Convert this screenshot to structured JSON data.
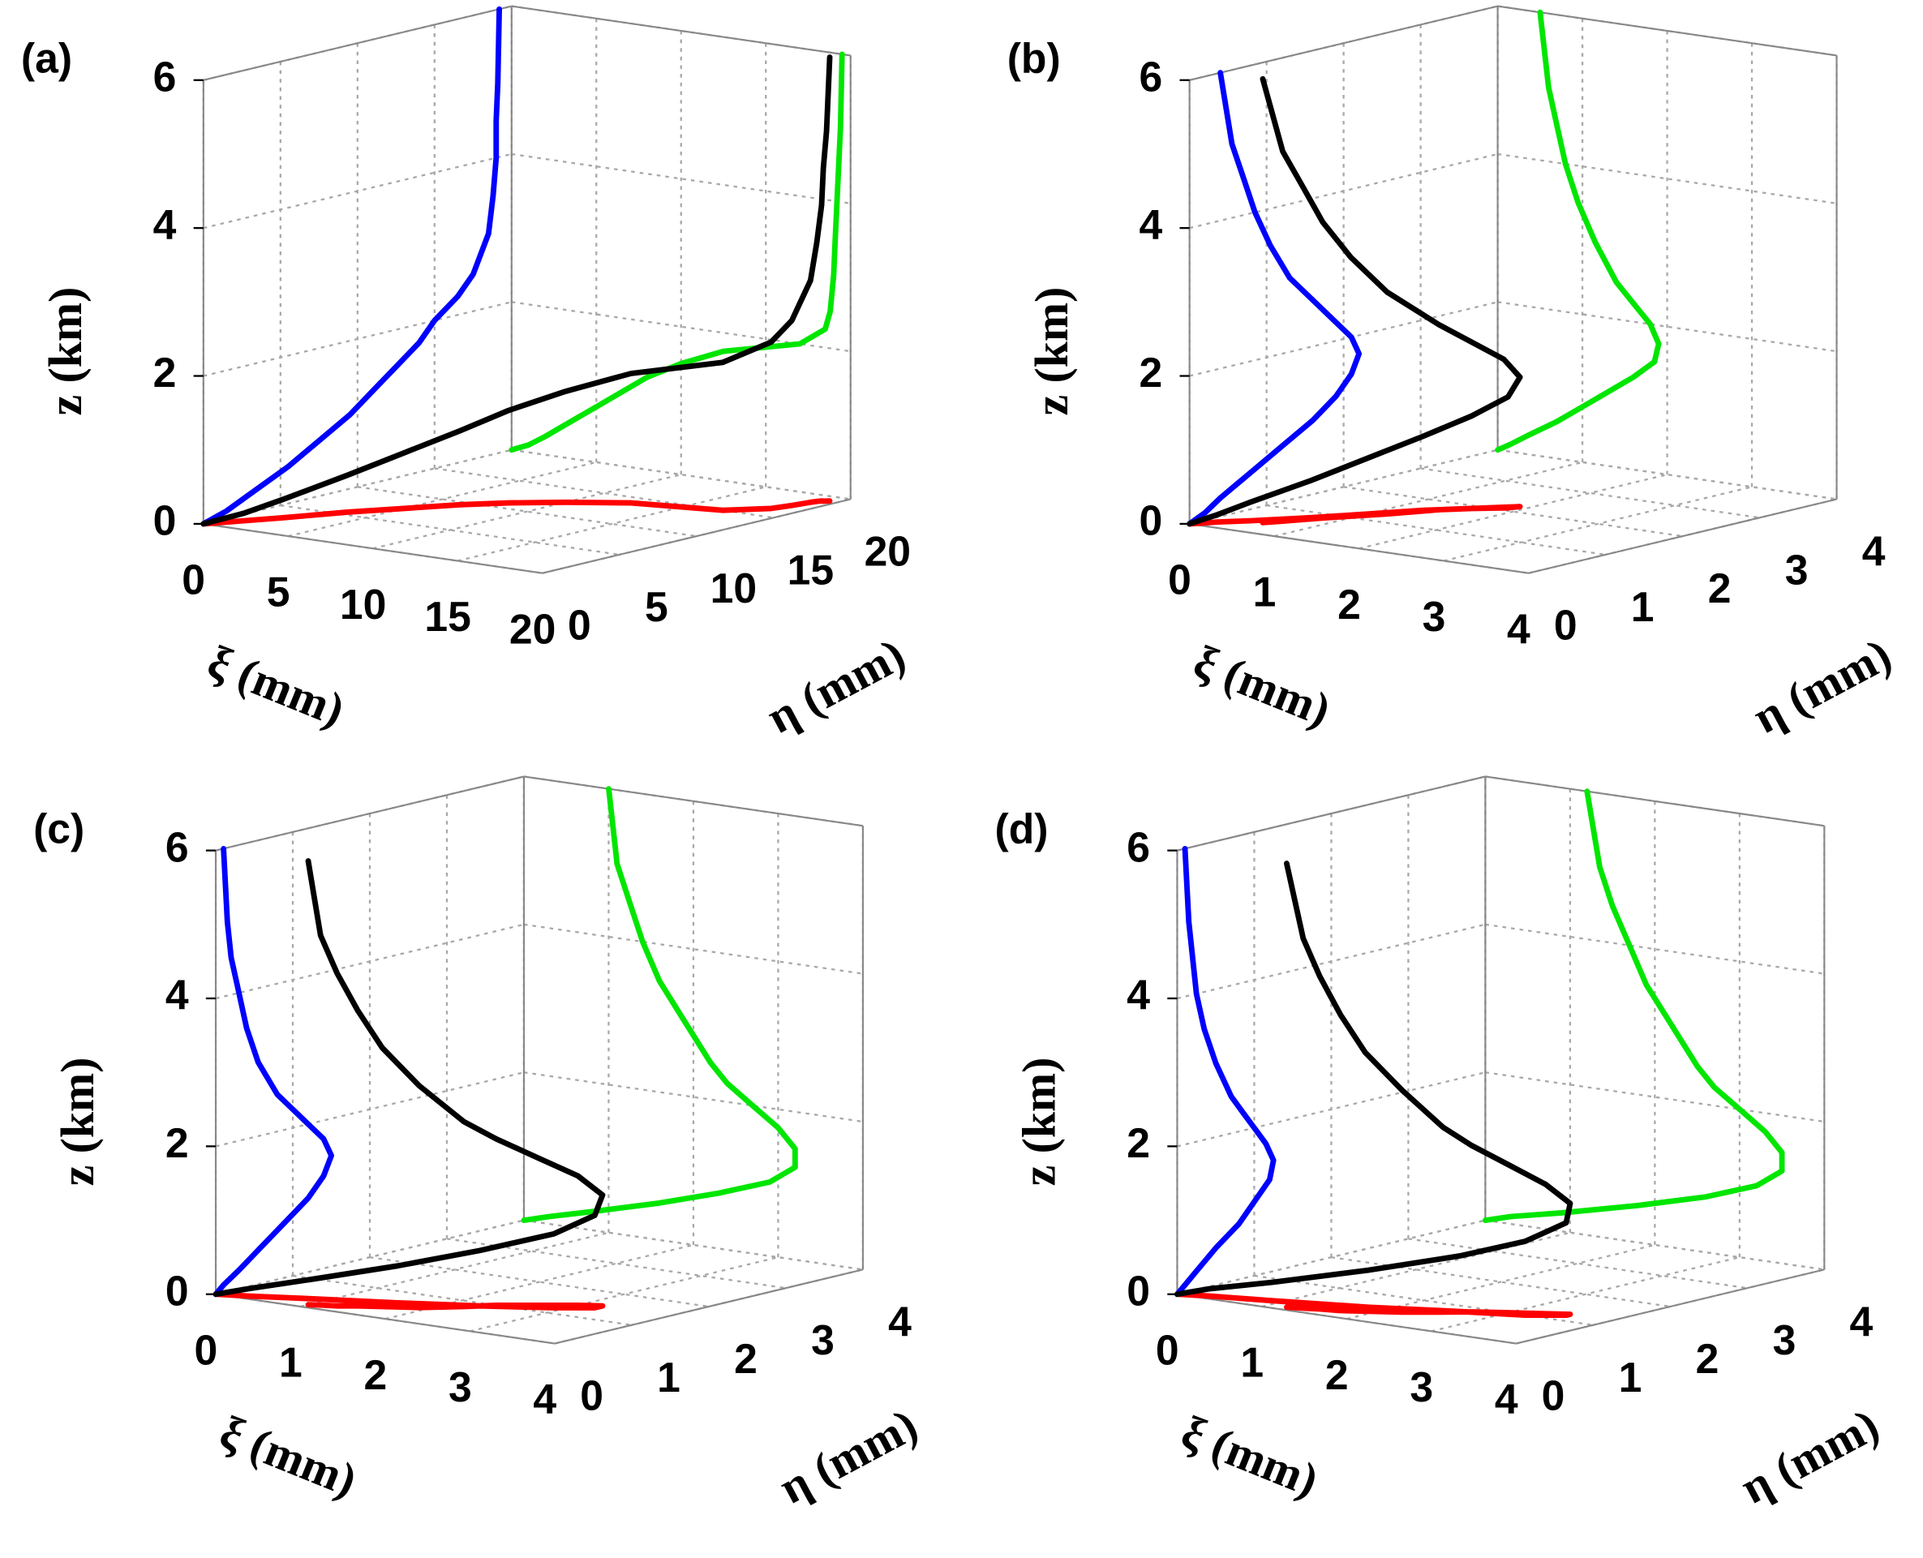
{
  "chart_data": [
    {
      "type": "line3d",
      "panel_label": "(a)",
      "xlabel": "ξ (mm)",
      "ylabel": "η (mm)",
      "zlabel": "z (km)",
      "xlim": [
        0,
        20
      ],
      "xticks": [
        0,
        5,
        10,
        15,
        20
      ],
      "ylim": [
        0,
        20
      ],
      "yticks": [
        0,
        5,
        10,
        15,
        20
      ],
      "zlim": [
        0,
        6
      ],
      "zticks": [
        0,
        2,
        4,
        6
      ],
      "grid": true,
      "color": "#000000",
      "projection_colors": {
        "yz": "#0000ff",
        "xz": "#00e600",
        "xy": "#ff0000"
      },
      "z": [
        0,
        0.1,
        0.25,
        0.5,
        0.75,
        1,
        1.25,
        1.5,
        1.75,
        2,
        2.25,
        2.5,
        3,
        3.5,
        4,
        4.5,
        5,
        6
      ],
      "x": [
        0,
        1,
        2,
        3.5,
        5,
        6.5,
        8,
        10,
        12.5,
        17,
        18.5,
        18.8,
        19,
        19.1,
        19.2,
        19.3,
        19.4,
        19.5
      ],
      "y": [
        0,
        1.5,
        3,
        5.5,
        7.5,
        9.5,
        11,
        12.5,
        14,
        15,
        16.5,
        17.5,
        18.5,
        18.8,
        19,
        19,
        19.1,
        19.2
      ]
    },
    {
      "type": "line3d",
      "panel_label": "(b)",
      "xlabel": "ξ (mm)",
      "ylabel": "η (mm)",
      "zlabel": "z (km)",
      "xlim": [
        0,
        4
      ],
      "xticks": [
        0,
        1,
        2,
        3,
        4
      ],
      "ylim": [
        0,
        4
      ],
      "yticks": [
        0,
        1,
        2,
        3,
        4
      ],
      "zlim": [
        0,
        6
      ],
      "zticks": [
        0,
        2,
        4,
        6
      ],
      "grid": true,
      "color": "#000000",
      "projection_colors": {
        "yz": "#0000ff",
        "xz": "#00e600",
        "xy": "#ff0000"
      },
      "z": [
        0,
        0.1,
        0.25,
        0.5,
        0.75,
        1,
        1.25,
        1.5,
        1.75,
        2,
        2.25,
        2.5,
        3,
        3.5,
        4,
        4.5,
        5,
        6
      ],
      "x": [
        0,
        0.15,
        0.35,
        0.7,
        1,
        1.3,
        1.6,
        1.85,
        1.9,
        1.8,
        1.6,
        1.4,
        1.15,
        0.95,
        0.8,
        0.7,
        0.6,
        0.5
      ],
      "y": [
        0,
        0.2,
        0.4,
        0.8,
        1.2,
        1.6,
        1.9,
        2.1,
        2.2,
        2.1,
        1.9,
        1.7,
        1.3,
        1.05,
        0.85,
        0.7,
        0.55,
        0.4
      ]
    },
    {
      "type": "line3d",
      "panel_label": "(c)",
      "xlabel": "ξ (mm)",
      "ylabel": "η (mm)",
      "zlabel": "z (km)",
      "xlim": [
        0,
        4
      ],
      "xticks": [
        0,
        1,
        2,
        3,
        4
      ],
      "ylim": [
        0,
        4
      ],
      "yticks": [
        0,
        1,
        2,
        3,
        4
      ],
      "zlim": [
        0,
        6
      ],
      "zticks": [
        0,
        2,
        4,
        6
      ],
      "grid": true,
      "color": "#000000",
      "projection_colors": {
        "yz": "#0000ff",
        "xz": "#00e600",
        "xy": "#ff0000"
      },
      "z": [
        0,
        0.1,
        0.25,
        0.5,
        0.75,
        1,
        1.25,
        1.5,
        1.75,
        2,
        2.25,
        2.5,
        3,
        3.5,
        4,
        4.5,
        5,
        6
      ],
      "x": [
        0,
        0.3,
        0.8,
        1.6,
        2.3,
        2.9,
        3.2,
        3.2,
        3.0,
        2.7,
        2.4,
        2.2,
        1.9,
        1.6,
        1.4,
        1.25,
        1.1,
        1.0
      ],
      "y": [
        0,
        0.1,
        0.3,
        0.6,
        0.9,
        1.2,
        1.4,
        1.5,
        1.4,
        1.2,
        1.0,
        0.8,
        0.55,
        0.4,
        0.3,
        0.2,
        0.15,
        0.1
      ]
    },
    {
      "type": "line3d",
      "panel_label": "(d)",
      "xlabel": "ξ (mm)",
      "ylabel": "η (mm)",
      "zlabel": "z (km)",
      "xlim": [
        0,
        4
      ],
      "xticks": [
        0,
        1,
        2,
        3,
        4
      ],
      "ylim": [
        0,
        4
      ],
      "yticks": [
        0,
        1,
        2,
        3,
        4
      ],
      "zlim": [
        0,
        6
      ],
      "zticks": [
        0,
        2,
        4,
        6
      ],
      "grid": true,
      "color": "#000000",
      "projection_colors": {
        "yz": "#0000ff",
        "xz": "#00e600",
        "xy": "#ff0000"
      },
      "z": [
        0,
        0.1,
        0.25,
        0.5,
        0.75,
        1,
        1.25,
        1.5,
        1.75,
        2,
        2.25,
        2.5,
        3,
        3.5,
        4,
        4.5,
        5,
        6
      ],
      "x": [
        0,
        0.3,
        0.9,
        1.8,
        2.6,
        3.2,
        3.5,
        3.5,
        3.3,
        3.0,
        2.7,
        2.5,
        2.2,
        1.9,
        1.7,
        1.5,
        1.35,
        1.2
      ],
      "y": [
        0,
        0.1,
        0.25,
        0.5,
        0.8,
        1.0,
        1.2,
        1.25,
        1.15,
        1.0,
        0.85,
        0.7,
        0.5,
        0.35,
        0.25,
        0.2,
        0.15,
        0.1
      ]
    }
  ]
}
